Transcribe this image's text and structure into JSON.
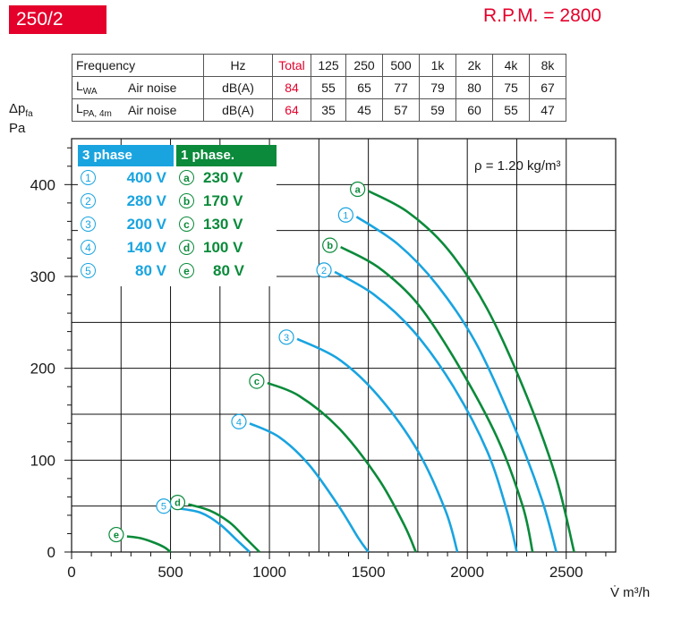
{
  "header": {
    "model": "250/2",
    "rpm": "R.P.M. = 2800"
  },
  "noise_table": {
    "header": [
      "Frequency",
      "Hz",
      "Total",
      "125",
      "250",
      "500",
      "1k",
      "2k",
      "4k",
      "8k"
    ],
    "rows": [
      {
        "symbol": "L",
        "sub": "WA",
        "desc": "Air noise",
        "unit": "dB(A)",
        "total": "84",
        "values": [
          "55",
          "65",
          "77",
          "79",
          "80",
          "75",
          "67"
        ]
      },
      {
        "symbol": "L",
        "sub": "PA, 4m",
        "desc": "Air noise",
        "unit": "dB(A)",
        "total": "64",
        "values": [
          "35",
          "45",
          "57",
          "59",
          "60",
          "55",
          "47"
        ]
      }
    ]
  },
  "legend": {
    "three_phase": {
      "title": "3 phase",
      "items": [
        {
          "symbol": "1",
          "voltage": "400 V"
        },
        {
          "symbol": "2",
          "voltage": "280 V"
        },
        {
          "symbol": "3",
          "voltage": "200 V"
        },
        {
          "symbol": "4",
          "voltage": "140 V"
        },
        {
          "symbol": "5",
          "voltage": "80 V"
        }
      ]
    },
    "one_phase": {
      "title": "1 phase.",
      "items": [
        {
          "symbol": "a",
          "voltage": "230 V"
        },
        {
          "symbol": "b",
          "voltage": "170 V"
        },
        {
          "symbol": "c",
          "voltage": "130 V"
        },
        {
          "symbol": "d",
          "voltage": "100 V"
        },
        {
          "symbol": "e",
          "voltage": "80 V"
        }
      ]
    }
  },
  "colors": {
    "three_phase": "#19a4e0",
    "one_phase": "#0a8a3a",
    "accent": "#e4002b",
    "grid": "#000000"
  },
  "chart_data": {
    "type": "line",
    "xlabel": "V̇ m³/h",
    "ylabel": "Δp",
    "ylabel_sub": "fa",
    "ylabel_unit": "Pa",
    "annotation": "ρ = 1.20 kg/m³",
    "xlim": [
      0,
      2750
    ],
    "ylim": [
      0,
      450
    ],
    "x_ticks": [
      0,
      500,
      1000,
      1500,
      2000,
      2500
    ],
    "y_ticks": [
      0,
      100,
      200,
      300,
      400
    ],
    "grid": true,
    "series": [
      {
        "name": "a",
        "phase": "1",
        "label": "230 V",
        "points": [
          [
            1500,
            393
          ],
          [
            1700,
            370
          ],
          [
            1900,
            330
          ],
          [
            2100,
            265
          ],
          [
            2300,
            170
          ],
          [
            2450,
            80
          ],
          [
            2540,
            0
          ]
        ]
      },
      {
        "name": "1",
        "phase": "3",
        "label": "400 V",
        "points": [
          [
            1440,
            365
          ],
          [
            1650,
            335
          ],
          [
            1850,
            290
          ],
          [
            2050,
            225
          ],
          [
            2250,
            130
          ],
          [
            2380,
            55
          ],
          [
            2450,
            0
          ]
        ]
      },
      {
        "name": "b",
        "phase": "1",
        "label": "170 V",
        "points": [
          [
            1360,
            332
          ],
          [
            1550,
            310
          ],
          [
            1750,
            270
          ],
          [
            1950,
            205
          ],
          [
            2150,
            125
          ],
          [
            2280,
            50
          ],
          [
            2330,
            0
          ]
        ]
      },
      {
        "name": "2",
        "phase": "3",
        "label": "280 V",
        "points": [
          [
            1330,
            305
          ],
          [
            1530,
            280
          ],
          [
            1730,
            240
          ],
          [
            1930,
            180
          ],
          [
            2100,
            110
          ],
          [
            2200,
            45
          ],
          [
            2250,
            0
          ]
        ]
      },
      {
        "name": "3",
        "phase": "3",
        "label": "200 V",
        "points": [
          [
            1140,
            232
          ],
          [
            1350,
            210
          ],
          [
            1550,
            170
          ],
          [
            1750,
            110
          ],
          [
            1890,
            45
          ],
          [
            1950,
            0
          ]
        ]
      },
      {
        "name": "c",
        "phase": "1",
        "label": "130 V",
        "points": [
          [
            990,
            184
          ],
          [
            1150,
            170
          ],
          [
            1350,
            135
          ],
          [
            1550,
            80
          ],
          [
            1680,
            30
          ],
          [
            1740,
            0
          ]
        ]
      },
      {
        "name": "4",
        "phase": "3",
        "label": "140 V",
        "points": [
          [
            900,
            140
          ],
          [
            1050,
            125
          ],
          [
            1200,
            95
          ],
          [
            1350,
            50
          ],
          [
            1450,
            15
          ],
          [
            1500,
            0
          ]
        ]
      },
      {
        "name": "d",
        "phase": "1",
        "label": "100 V",
        "points": [
          [
            590,
            52
          ],
          [
            700,
            45
          ],
          [
            800,
            32
          ],
          [
            880,
            15
          ],
          [
            950,
            0
          ]
        ]
      },
      {
        "name": "5",
        "phase": "3",
        "label": "80 V",
        "points": [
          [
            520,
            48
          ],
          [
            650,
            43
          ],
          [
            750,
            30
          ],
          [
            840,
            12
          ],
          [
            900,
            0
          ]
        ]
      },
      {
        "name": "e",
        "phase": "1",
        "label": "80 V",
        "points": [
          [
            280,
            17
          ],
          [
            350,
            15
          ],
          [
            420,
            10
          ],
          [
            470,
            5
          ],
          [
            500,
            0
          ]
        ]
      }
    ]
  }
}
